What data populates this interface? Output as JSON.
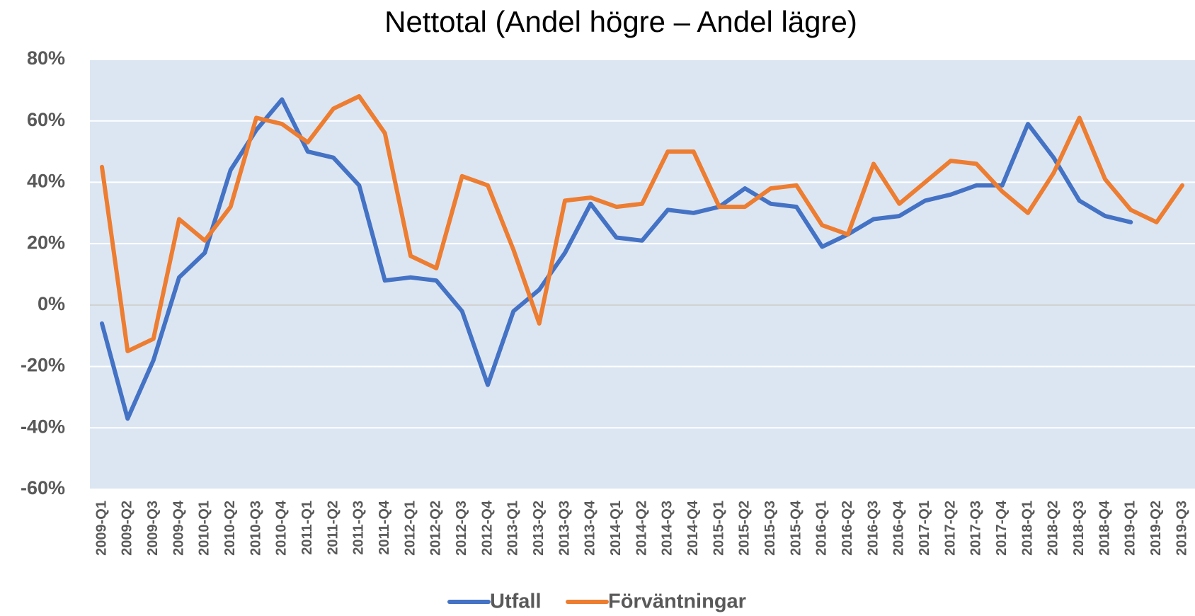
{
  "chart_data": {
    "type": "line",
    "title": "Nettotal (Andel högre – Andel lägre)",
    "categories": [
      "2009-Q1",
      "2009-Q2",
      "2009-Q3",
      "2009-Q4",
      "2010-Q1",
      "2010-Q2",
      "2010-Q3",
      "2010-Q4",
      "2011-Q1",
      "2011-Q2",
      "2011-Q3",
      "2011-Q4",
      "2012-Q1",
      "2012-Q2",
      "2012-Q3",
      "2012-Q4",
      "2013-Q1",
      "2013-Q2",
      "2013-Q3",
      "2013-Q4",
      "2014-Q1",
      "2014-Q2",
      "2014-Q3",
      "2014-Q4",
      "2015-Q1",
      "2015-Q2",
      "2015-Q3",
      "2015-Q4",
      "2016-Q1",
      "2016-Q2",
      "2016-Q3",
      "2016-Q4",
      "2017-Q1",
      "2017-Q2",
      "2017-Q3",
      "2017-Q4",
      "2018-Q1",
      "2018-Q2",
      "2018-Q3",
      "2018-Q4",
      "2019-Q1",
      "2019-Q2",
      "2019-Q3"
    ],
    "series": [
      {
        "name": "Utfall",
        "color": "#4472c4",
        "values": [
          -6,
          -37,
          -18,
          9,
          17,
          44,
          57,
          67,
          50,
          48,
          39,
          8,
          9,
          8,
          -2,
          -26,
          -2,
          5,
          17,
          33,
          22,
          21,
          31,
          30,
          32,
          38,
          33,
          32,
          19,
          23,
          28,
          29,
          34,
          36,
          39,
          39,
          59,
          48,
          34,
          29,
          27,
          null,
          null
        ]
      },
      {
        "name": "Förväntningar",
        "color": "#ed7d31",
        "values": [
          45,
          -15,
          -11,
          28,
          21,
          32,
          61,
          59,
          53,
          64,
          68,
          56,
          16,
          12,
          42,
          39,
          18,
          -6,
          34,
          35,
          32,
          33,
          50,
          50,
          32,
          32,
          38,
          39,
          26,
          23,
          46,
          33,
          40,
          47,
          46,
          37,
          30,
          43,
          61,
          41,
          31,
          27,
          39
        ]
      }
    ],
    "ylim": [
      -60,
      80
    ],
    "yticks": [
      {
        "value": -60,
        "label": "-60%"
      },
      {
        "value": -40,
        "label": "-40%"
      },
      {
        "value": -20,
        "label": "-20%"
      },
      {
        "value": 0,
        "label": "0%"
      },
      {
        "value": 20,
        "label": "20%"
      },
      {
        "value": 40,
        "label": "40%"
      },
      {
        "value": 60,
        "label": "60%"
      },
      {
        "value": 80,
        "label": "80%"
      }
    ],
    "grid": true,
    "legend": "bottom",
    "plot_background": "#dce6f2"
  }
}
